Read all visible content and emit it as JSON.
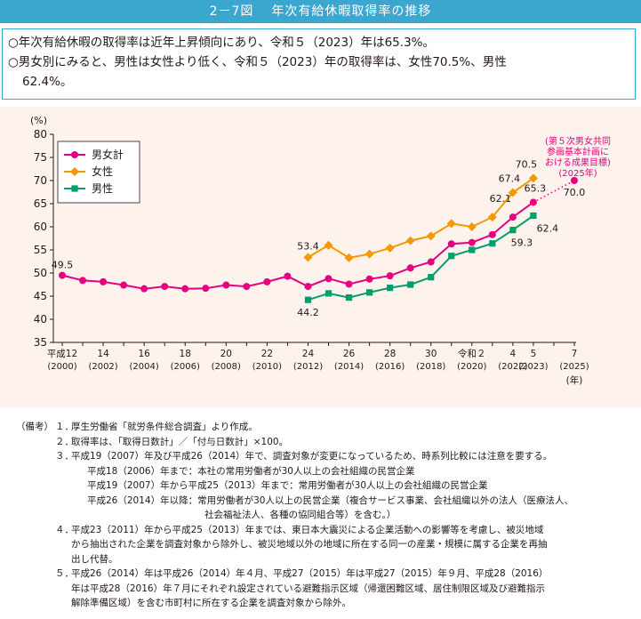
{
  "header": {
    "figure_number": "2－7図",
    "title": "年次有給休暇取得率の推移"
  },
  "summary": {
    "line1": "○年次有給休暇の取得率は近年上昇傾向にあり、令和５（2023）年は65.3%。",
    "line2a": "○男女別にみると、男性は女性より低く、令和５（2023）年の取得率は、女性70.5%、男性",
    "line2b": "62.4%。"
  },
  "colors": {
    "total": "#e4007f",
    "female": "#f39800",
    "male": "#009e6b",
    "header_bg": "#3ba7cf",
    "panel_bg": "#fdf2ec"
  },
  "chart_data": {
    "type": "line",
    "y_unit_label": "(%)",
    "ylim": [
      35,
      80
    ],
    "yticks": [
      35,
      40,
      45,
      50,
      55,
      60,
      65,
      70,
      75,
      80
    ],
    "x_years": [
      2000,
      2001,
      2002,
      2003,
      2004,
      2005,
      2006,
      2007,
      2008,
      2009,
      2010,
      2011,
      2012,
      2013,
      2014,
      2015,
      2016,
      2017,
      2018,
      2019,
      2020,
      2021,
      2022,
      2023,
      2024,
      2025
    ],
    "x_tick_labels": [
      {
        "year": 2000,
        "era": "平成12",
        "western": "(2000)"
      },
      {
        "year": 2002,
        "era": "14",
        "western": "(2002)"
      },
      {
        "year": 2004,
        "era": "16",
        "western": "(2004)"
      },
      {
        "year": 2006,
        "era": "18",
        "western": "(2006)"
      },
      {
        "year": 2008,
        "era": "20",
        "western": "(2008)"
      },
      {
        "year": 2010,
        "era": "22",
        "western": "(2010)"
      },
      {
        "year": 2012,
        "era": "24",
        "western": "(2012)"
      },
      {
        "year": 2014,
        "era": "26",
        "western": "(2014)"
      },
      {
        "year": 2016,
        "era": "28",
        "western": "(2016)"
      },
      {
        "year": 2018,
        "era": "30",
        "western": "(2018)"
      },
      {
        "year": 2020,
        "era": "令和２",
        "western": "(2020)"
      },
      {
        "year": 2022,
        "era": "4",
        "western": "(2022)"
      },
      {
        "year": 2023,
        "era": "5",
        "western": "(2023)"
      },
      {
        "year": 2025,
        "era": "7",
        "western": "(2025)"
      }
    ],
    "x_unit_label": "(年)",
    "grid": false,
    "legend_position": "top-left",
    "series": [
      {
        "name": "男女計",
        "key": "total",
        "marker": "circle",
        "points": [
          [
            2000,
            49.5
          ],
          [
            2001,
            48.4
          ],
          [
            2002,
            48.1
          ],
          [
            2003,
            47.4
          ],
          [
            2004,
            46.6
          ],
          [
            2005,
            47.1
          ],
          [
            2006,
            46.6
          ],
          [
            2007,
            46.7
          ],
          [
            2008,
            47.4
          ],
          [
            2009,
            47.1
          ],
          [
            2010,
            48.1
          ],
          [
            2011,
            49.3
          ],
          [
            2012,
            47.1
          ],
          [
            2013,
            48.8
          ],
          [
            2014,
            47.6
          ],
          [
            2015,
            48.7
          ],
          [
            2016,
            49.4
          ],
          [
            2017,
            51.1
          ],
          [
            2018,
            52.4
          ],
          [
            2019,
            56.3
          ],
          [
            2020,
            56.6
          ],
          [
            2021,
            58.3
          ],
          [
            2022,
            62.1
          ],
          [
            2023,
            65.3
          ]
        ]
      },
      {
        "name": "女性",
        "key": "female",
        "marker": "diamond",
        "points": [
          [
            2012,
            53.4
          ],
          [
            2013,
            56.0
          ],
          [
            2014,
            53.3
          ],
          [
            2015,
            54.1
          ],
          [
            2016,
            55.4
          ],
          [
            2017,
            57.0
          ],
          [
            2018,
            58.0
          ],
          [
            2019,
            60.7
          ],
          [
            2020,
            60.0
          ],
          [
            2021,
            62.1
          ],
          [
            2022,
            67.4
          ],
          [
            2023,
            70.5
          ]
        ]
      },
      {
        "name": "男性",
        "key": "male",
        "marker": "square",
        "points": [
          [
            2012,
            44.2
          ],
          [
            2013,
            45.6
          ],
          [
            2014,
            44.7
          ],
          [
            2015,
            45.8
          ],
          [
            2016,
            46.8
          ],
          [
            2017,
            47.5
          ],
          [
            2018,
            49.1
          ],
          [
            2019,
            53.7
          ],
          [
            2020,
            55.0
          ],
          [
            2021,
            56.4
          ],
          [
            2022,
            59.3
          ],
          [
            2023,
            62.4
          ]
        ]
      }
    ],
    "target": {
      "year": 2025,
      "value": 70.0,
      "from_year": 2023,
      "from_value": 65.3,
      "label": "70.0",
      "annotation": [
        "(第５次男女共同",
        "参画基本計画に",
        "おける成果目標)",
        "(2025年)"
      ]
    },
    "data_labels": [
      {
        "series": "total",
        "year": 2000,
        "text": "49.5"
      },
      {
        "series": "female",
        "year": 2012,
        "text": "53.4"
      },
      {
        "series": "male",
        "year": 2012,
        "text": "44.2"
      },
      {
        "series": "total",
        "year": 2022,
        "text": "62.1"
      },
      {
        "series": "female",
        "year": 2022,
        "text": "67.4"
      },
      {
        "series": "female",
        "year": 2023,
        "text": "70.5"
      },
      {
        "series": "total",
        "year": 2023,
        "text": "65.3"
      },
      {
        "series": "male",
        "year": 2022,
        "text": "59.3"
      },
      {
        "series": "male",
        "year": 2023,
        "text": "62.4"
      }
    ]
  },
  "notes": {
    "label": "（備考）",
    "items": [
      {
        "num": "１．",
        "text": "厚生労働省「就労条件総合調査」より作成。"
      },
      {
        "num": "２．",
        "text": "取得率は、「取得日数計」／「付与日数計」×100。"
      },
      {
        "num": "３．",
        "text": "平成19（2007）年及び平成26（2014）年で、調査対象が変更になっているため、時系列比較には注意を要する。",
        "sub": [
          "平成18（2006）年まで：本社の常用労働者が30人以上の会社組織の民営企業",
          "平成19（2007）年から平成25（2013）年まで：常用労働者が30人以上の会社組織の民営企業",
          "平成26（2014）年以降：常用労働者が30人以上の民営企業（複合サービス事業、会社組織以外の法人（医療法人、"
        ],
        "sub2": "社会福祉法人、各種の協同組合等）を含む。）"
      },
      {
        "num": "４．",
        "text": "平成23（2011）年から平成25（2013）年までは、東日本大震災による企業活動への影響等を考慮し、被災地域",
        "cont": [
          "から抽出された企業を調査対象から除外し、被災地域以外の地域に所在する同一の産業・規模に属する企業を再抽",
          "出し代替。"
        ]
      },
      {
        "num": "５．",
        "text": "平成26（2014）年は平成26（2014）年４月、平成27（2015）年は平成27（2015）年９月、平成28（2016）",
        "cont": [
          "年は平成28（2016）年７月にそれぞれ設定されている避難指示区域（帰還困難区域、居住制限区域及び避難指示",
          "解除準備区域）を含む市町村に所在する企業を調査対象から除外。"
        ]
      }
    ]
  }
}
